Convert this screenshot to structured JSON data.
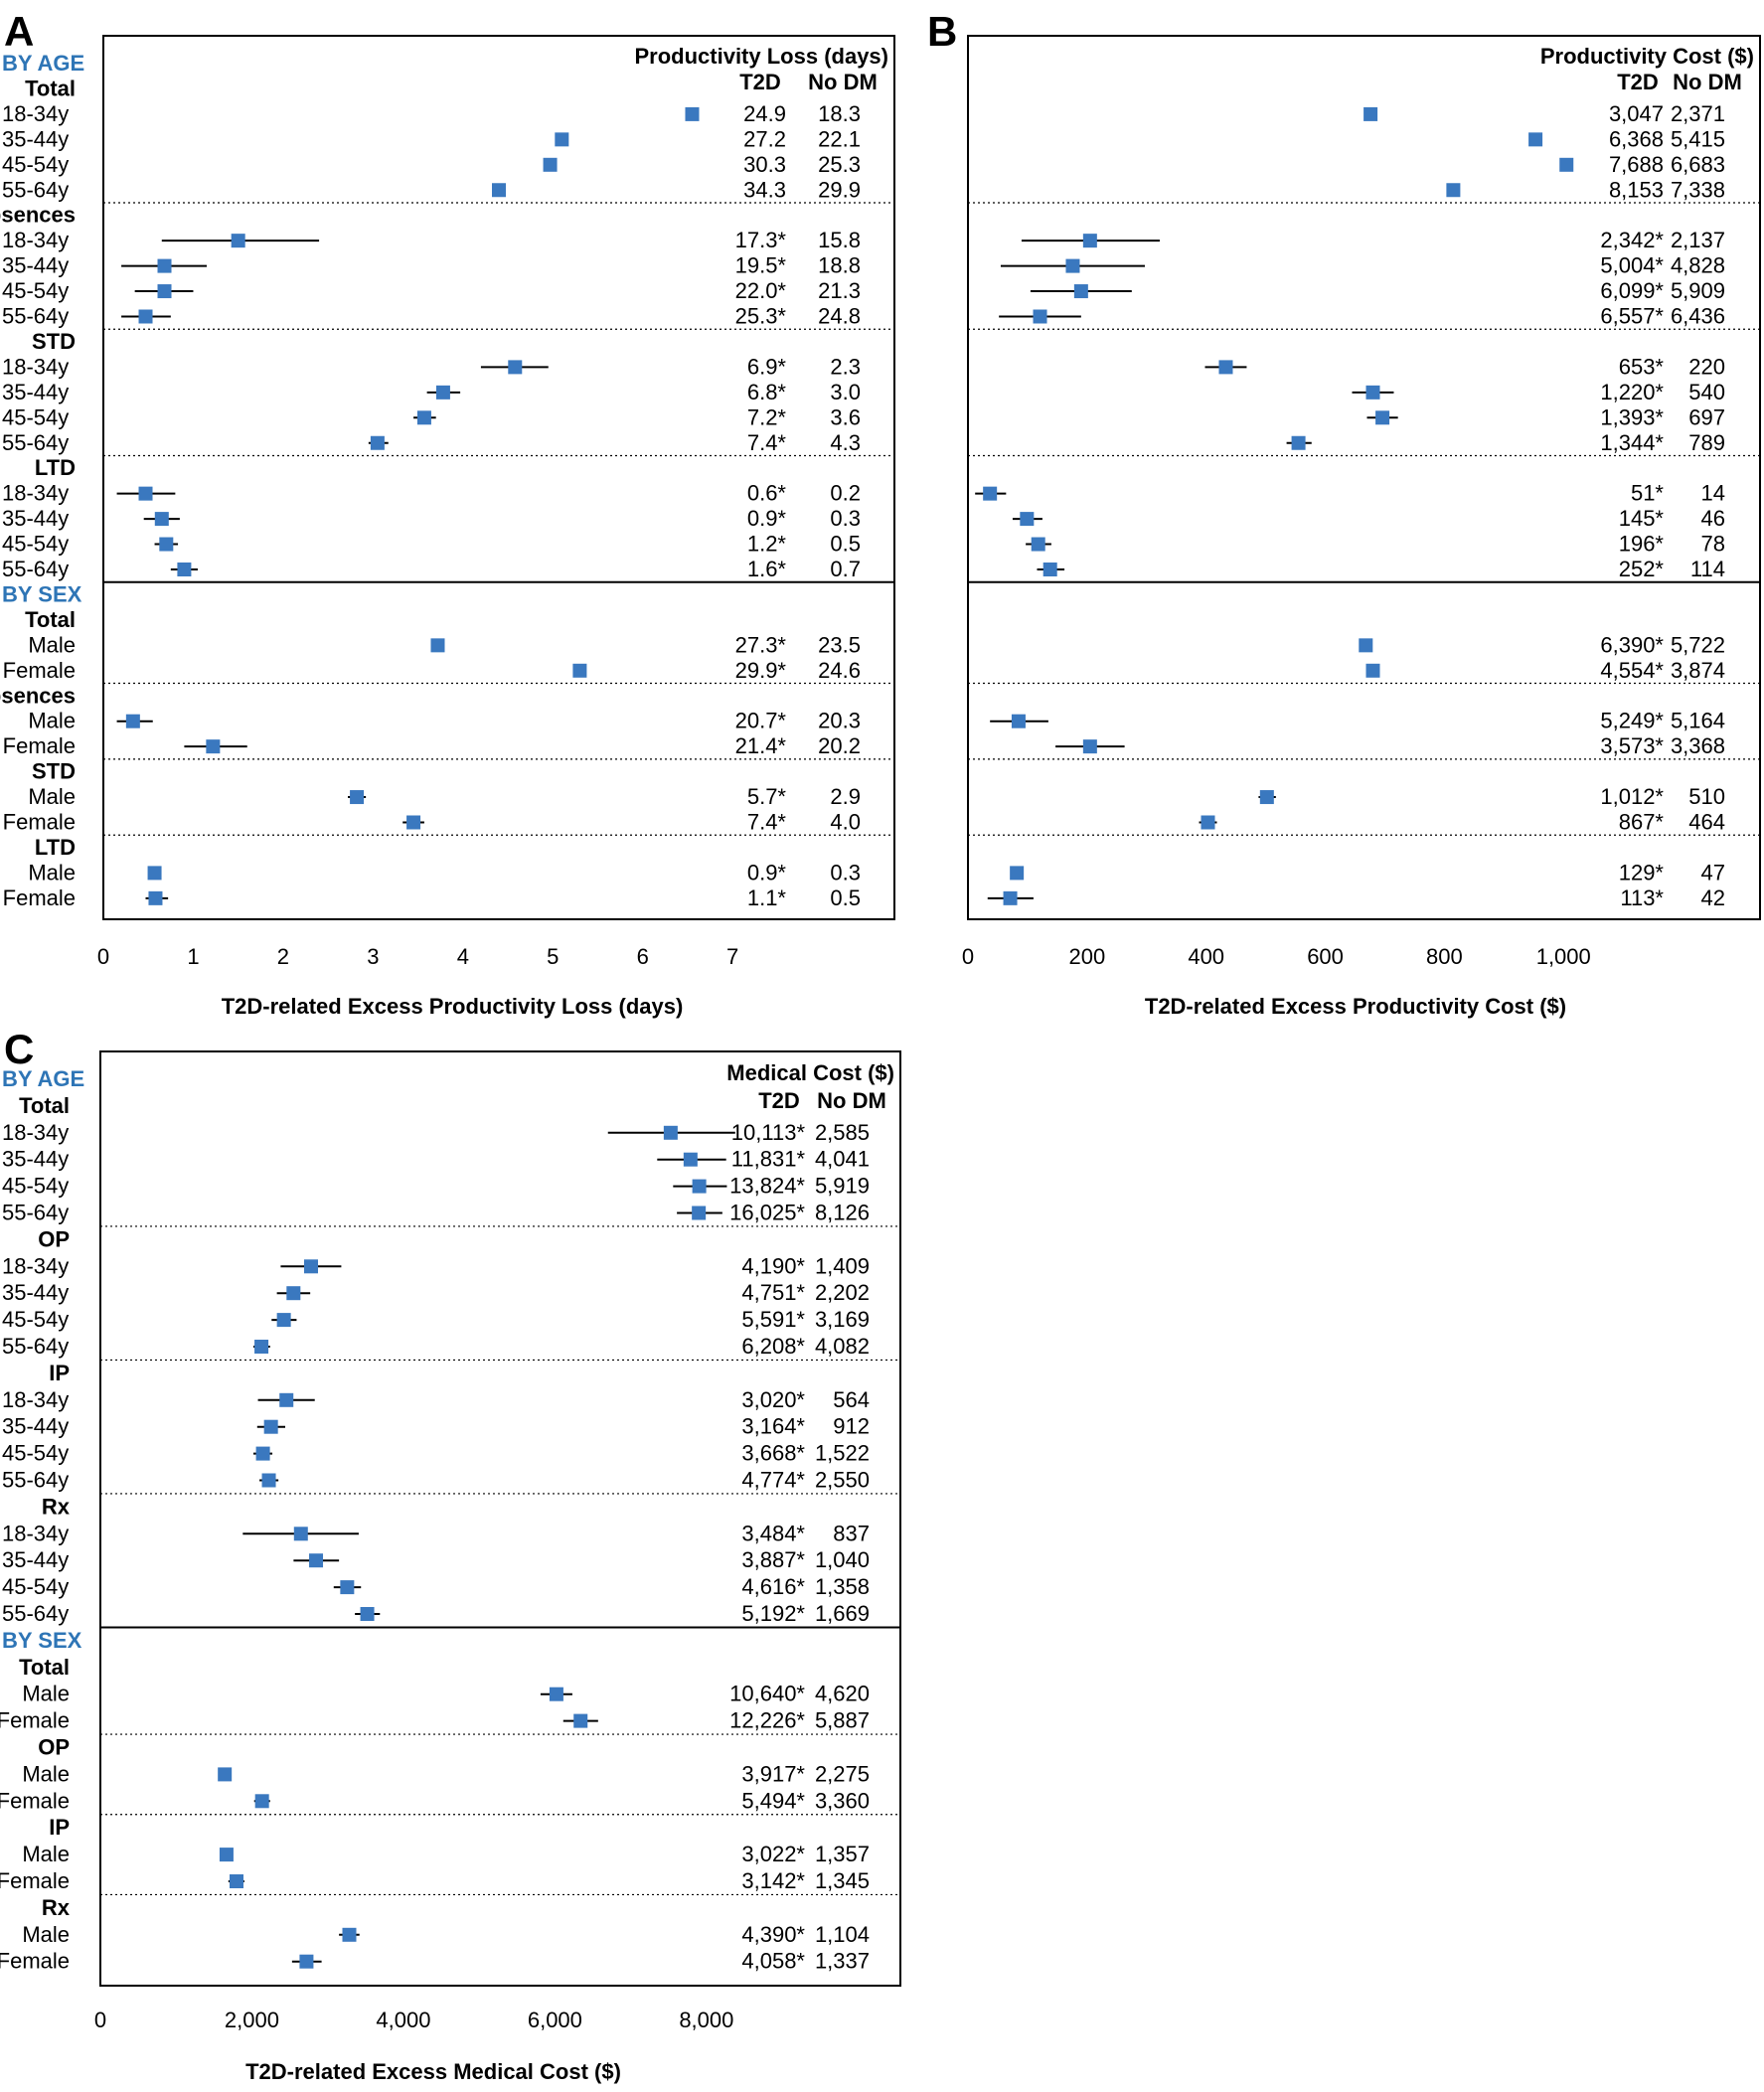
{
  "figure_colors": {
    "marker": "#3a78bf",
    "group_heading": "#2e75b6",
    "ink": "#000000"
  },
  "chart_data": [
    {
      "type": "forest",
      "panel_letter": "A",
      "title": "Productivity Loss (days)",
      "col_t2d": "T2D",
      "col_nodm": "No DM",
      "xlabel": "T2D-related Excess Productivity Loss (days)",
      "xlim": [
        0,
        8.8
      ],
      "xticks": [
        0,
        1,
        2,
        3,
        4,
        5,
        6,
        7
      ],
      "tick_labels": [
        "0",
        "1",
        "2",
        "3",
        "4",
        "5",
        "6",
        "7"
      ],
      "rows": [
        {
          "kind": "group",
          "text": "BY AGE"
        },
        {
          "kind": "sub",
          "text": "Total"
        },
        {
          "kind": "data",
          "label": "18-34y",
          "est": 6.55,
          "lo": null,
          "hi": null,
          "t2d": "24.9",
          "nodm": "18.3"
        },
        {
          "kind": "data",
          "label": "35-44y",
          "est": 5.1,
          "lo": null,
          "hi": null,
          "t2d": "27.2",
          "nodm": "22.1"
        },
        {
          "kind": "data",
          "label": "45-54y",
          "est": 4.97,
          "lo": null,
          "hi": null,
          "t2d": "30.3",
          "nodm": "25.3"
        },
        {
          "kind": "data",
          "label": "55-64y",
          "est": 4.4,
          "lo": null,
          "hi": null,
          "t2d": "34.3",
          "nodm": "29.9"
        },
        {
          "kind": "sub",
          "text": "Absences",
          "sep": "dot"
        },
        {
          "kind": "data",
          "label": "18-34y",
          "est": 1.5,
          "lo": 0.65,
          "hi": 2.4,
          "t2d": "17.3*",
          "nodm": "15.8"
        },
        {
          "kind": "data",
          "label": "35-44y",
          "est": 0.68,
          "lo": 0.2,
          "hi": 1.15,
          "t2d": "19.5*",
          "nodm": "18.8"
        },
        {
          "kind": "data",
          "label": "45-54y",
          "est": 0.68,
          "lo": 0.35,
          "hi": 1.0,
          "t2d": "22.0*",
          "nodm": "21.3"
        },
        {
          "kind": "data",
          "label": "55-64y",
          "est": 0.47,
          "lo": 0.2,
          "hi": 0.75,
          "t2d": "25.3*",
          "nodm": "24.8"
        },
        {
          "kind": "sub",
          "text": "STD",
          "sep": "dot"
        },
        {
          "kind": "data",
          "label": "18-34y",
          "est": 4.58,
          "lo": 4.2,
          "hi": 4.95,
          "t2d": "6.9*",
          "nodm": "2.3"
        },
        {
          "kind": "data",
          "label": "35-44y",
          "est": 3.78,
          "lo": 3.6,
          "hi": 3.97,
          "t2d": "6.8*",
          "nodm": "3.0"
        },
        {
          "kind": "data",
          "label": "45-54y",
          "est": 3.57,
          "lo": 3.45,
          "hi": 3.7,
          "t2d": "7.2*",
          "nodm": "3.6"
        },
        {
          "kind": "data",
          "label": "55-64y",
          "est": 3.05,
          "lo": 2.95,
          "hi": 3.17,
          "t2d": "7.4*",
          "nodm": "4.3"
        },
        {
          "kind": "sub",
          "text": "LTD",
          "sep": "dot"
        },
        {
          "kind": "data",
          "label": "18-34y",
          "est": 0.47,
          "lo": 0.15,
          "hi": 0.8,
          "t2d": "0.6*",
          "nodm": "0.2"
        },
        {
          "kind": "data",
          "label": "35-44y",
          "est": 0.65,
          "lo": 0.45,
          "hi": 0.85,
          "t2d": "0.9*",
          "nodm": "0.3"
        },
        {
          "kind": "data",
          "label": "45-54y",
          "est": 0.7,
          "lo": 0.57,
          "hi": 0.83,
          "t2d": "1.2*",
          "nodm": "0.5"
        },
        {
          "kind": "data",
          "label": "55-64y",
          "est": 0.9,
          "lo": 0.75,
          "hi": 1.05,
          "t2d": "1.6*",
          "nodm": "0.7"
        },
        {
          "kind": "group",
          "text": "BY SEX",
          "sep": "solid"
        },
        {
          "kind": "sub",
          "text": "Total"
        },
        {
          "kind": "data",
          "label": "Male",
          "est": 3.72,
          "lo": null,
          "hi": null,
          "t2d": "27.3*",
          "nodm": "23.5"
        },
        {
          "kind": "data",
          "label": "Female",
          "est": 5.3,
          "lo": null,
          "hi": null,
          "t2d": "29.9*",
          "nodm": "24.6"
        },
        {
          "kind": "sub",
          "text": "Absences",
          "sep": "dot"
        },
        {
          "kind": "data",
          "label": "Male",
          "est": 0.33,
          "lo": 0.15,
          "hi": 0.55,
          "t2d": "20.7*",
          "nodm": "20.3"
        },
        {
          "kind": "data",
          "label": "Female",
          "est": 1.22,
          "lo": 0.9,
          "hi": 1.6,
          "t2d": "21.4*",
          "nodm": "20.2"
        },
        {
          "kind": "sub",
          "text": "STD",
          "sep": "dot"
        },
        {
          "kind": "data",
          "label": "Male",
          "est": 2.82,
          "lo": 2.72,
          "hi": 2.92,
          "t2d": "5.7*",
          "nodm": "2.9"
        },
        {
          "kind": "data",
          "label": "Female",
          "est": 3.45,
          "lo": 3.33,
          "hi": 3.57,
          "t2d": "7.4*",
          "nodm": "4.0"
        },
        {
          "kind": "sub",
          "text": "LTD",
          "sep": "dot"
        },
        {
          "kind": "data",
          "label": "Male",
          "est": 0.57,
          "lo": null,
          "hi": null,
          "t2d": "0.9*",
          "nodm": "0.3"
        },
        {
          "kind": "data",
          "label": "Female",
          "est": 0.58,
          "lo": 0.47,
          "hi": 0.72,
          "t2d": "1.1*",
          "nodm": "0.5"
        }
      ]
    },
    {
      "type": "forest",
      "panel_letter": "B",
      "title": "Productivity Cost ($)",
      "col_t2d": "T2D",
      "col_nodm": "No DM",
      "xlabel": "T2D-related Excess Productivity Cost ($)",
      "xlim": [
        0,
        1330
      ],
      "xticks": [
        0,
        200,
        400,
        600,
        800,
        1000
      ],
      "tick_labels": [
        "0",
        "200",
        "400",
        "600",
        "800",
        "1,000"
      ],
      "rows": [
        {
          "kind": "group",
          "text": ""
        },
        {
          "kind": "sub",
          "text": ""
        },
        {
          "kind": "data",
          "label": "",
          "est": 676,
          "lo": null,
          "hi": null,
          "t2d": "3,047",
          "nodm": "2,371"
        },
        {
          "kind": "data",
          "label": "",
          "est": 953,
          "lo": null,
          "hi": null,
          "t2d": "6,368",
          "nodm": "5,415"
        },
        {
          "kind": "data",
          "label": "",
          "est": 1005,
          "lo": null,
          "hi": null,
          "t2d": "7,688",
          "nodm": "6,683"
        },
        {
          "kind": "data",
          "label": "",
          "est": 815,
          "lo": null,
          "hi": null,
          "t2d": "8,153",
          "nodm": "7,338"
        },
        {
          "kind": "sub",
          "text": "",
          "sep": "dot"
        },
        {
          "kind": "data",
          "label": "",
          "est": 205,
          "lo": 90,
          "hi": 322,
          "t2d": "2,342*",
          "nodm": "2,137"
        },
        {
          "kind": "data",
          "label": "",
          "est": 176,
          "lo": 55,
          "hi": 297,
          "t2d": "5,004*",
          "nodm": "4,828"
        },
        {
          "kind": "data",
          "label": "",
          "est": 190,
          "lo": 105,
          "hi": 275,
          "t2d": "6,099*",
          "nodm": "5,909"
        },
        {
          "kind": "data",
          "label": "",
          "est": 121,
          "lo": 52,
          "hi": 190,
          "t2d": "6,557*",
          "nodm": "6,436"
        },
        {
          "kind": "sub",
          "text": "",
          "sep": "dot"
        },
        {
          "kind": "data",
          "label": "",
          "est": 433,
          "lo": 398,
          "hi": 468,
          "t2d": "653*",
          "nodm": "220"
        },
        {
          "kind": "data",
          "label": "",
          "est": 680,
          "lo": 645,
          "hi": 715,
          "t2d": "1,220*",
          "nodm": "540"
        },
        {
          "kind": "data",
          "label": "",
          "est": 696,
          "lo": 670,
          "hi": 722,
          "t2d": "1,393*",
          "nodm": "697"
        },
        {
          "kind": "data",
          "label": "",
          "est": 555,
          "lo": 535,
          "hi": 577,
          "t2d": "1,344*",
          "nodm": "789"
        },
        {
          "kind": "sub",
          "text": "",
          "sep": "dot"
        },
        {
          "kind": "data",
          "label": "",
          "est": 37,
          "lo": 12,
          "hi": 64,
          "t2d": "51*",
          "nodm": "14"
        },
        {
          "kind": "data",
          "label": "",
          "est": 99,
          "lo": 75,
          "hi": 125,
          "t2d": "145*",
          "nodm": "46"
        },
        {
          "kind": "data",
          "label": "",
          "est": 118,
          "lo": 97,
          "hi": 140,
          "t2d": "196*",
          "nodm": "78"
        },
        {
          "kind": "data",
          "label": "",
          "est": 138,
          "lo": 116,
          "hi": 162,
          "t2d": "252*",
          "nodm": "114"
        },
        {
          "kind": "group",
          "text": "",
          "sep": "solid"
        },
        {
          "kind": "sub",
          "text": ""
        },
        {
          "kind": "data",
          "label": "",
          "est": 668,
          "lo": null,
          "hi": null,
          "t2d": "6,390*",
          "nodm": "5,722"
        },
        {
          "kind": "data",
          "label": "",
          "est": 680,
          "lo": null,
          "hi": null,
          "t2d": "4,554*",
          "nodm": "3,874"
        },
        {
          "kind": "sub",
          "text": "",
          "sep": "dot"
        },
        {
          "kind": "data",
          "label": "",
          "est": 85,
          "lo": 37,
          "hi": 135,
          "t2d": "5,249*",
          "nodm": "5,164"
        },
        {
          "kind": "data",
          "label": "",
          "est": 205,
          "lo": 147,
          "hi": 263,
          "t2d": "3,573*",
          "nodm": "3,368"
        },
        {
          "kind": "sub",
          "text": "",
          "sep": "dot"
        },
        {
          "kind": "data",
          "label": "",
          "est": 502,
          "lo": 488,
          "hi": 517,
          "t2d": "1,012*",
          "nodm": "510"
        },
        {
          "kind": "data",
          "label": "",
          "est": 403,
          "lo": 388,
          "hi": 418,
          "t2d": "867*",
          "nodm": "464"
        },
        {
          "kind": "sub",
          "text": "",
          "sep": "dot"
        },
        {
          "kind": "data",
          "label": "",
          "est": 82,
          "lo": null,
          "hi": null,
          "t2d": "129*",
          "nodm": "47"
        },
        {
          "kind": "data",
          "label": "",
          "est": 71,
          "lo": 33,
          "hi": 110,
          "t2d": "113*",
          "nodm": "42"
        }
      ]
    },
    {
      "type": "forest",
      "panel_letter": "C",
      "title": "Medical Cost ($)",
      "col_t2d": "T2D",
      "col_nodm": "No DM",
      "xlabel": "T2D-related Excess Medical Cost ($)",
      "xlim": [
        0,
        10560
      ],
      "xticks": [
        0,
        2000,
        4000,
        6000,
        8000
      ],
      "tick_labels": [
        "0",
        "2,000",
        "4,000",
        "6,000",
        "8,000"
      ],
      "rows": [
        {
          "kind": "group",
          "text": "BY AGE"
        },
        {
          "kind": "sub",
          "text": "Total"
        },
        {
          "kind": "data",
          "label": "18-34y",
          "est": 7528,
          "lo": 6700,
          "hi": 8380,
          "t2d": "10,113*",
          "nodm": "2,585"
        },
        {
          "kind": "data",
          "label": "35-44y",
          "est": 7790,
          "lo": 7350,
          "hi": 8260,
          "t2d": "11,831*",
          "nodm": "4,041"
        },
        {
          "kind": "data",
          "label": "45-54y",
          "est": 7905,
          "lo": 7560,
          "hi": 8270,
          "t2d": "13,824*",
          "nodm": "5,919"
        },
        {
          "kind": "data",
          "label": "55-64y",
          "est": 7899,
          "lo": 7610,
          "hi": 8210,
          "t2d": "16,025*",
          "nodm": "8,126"
        },
        {
          "kind": "sub",
          "text": "OP",
          "sep": "dot"
        },
        {
          "kind": "data",
          "label": "18-34y",
          "est": 2781,
          "lo": 2380,
          "hi": 3180,
          "t2d": "4,190*",
          "nodm": "1,409"
        },
        {
          "kind": "data",
          "label": "35-44y",
          "est": 2549,
          "lo": 2330,
          "hi": 2770,
          "t2d": "4,751*",
          "nodm": "2,202"
        },
        {
          "kind": "data",
          "label": "45-54y",
          "est": 2422,
          "lo": 2260,
          "hi": 2590,
          "t2d": "5,591*",
          "nodm": "3,169"
        },
        {
          "kind": "data",
          "label": "55-64y",
          "est": 2126,
          "lo": 2020,
          "hi": 2240,
          "t2d": "6,208*",
          "nodm": "4,082"
        },
        {
          "kind": "sub",
          "text": "IP",
          "sep": "dot"
        },
        {
          "kind": "data",
          "label": "18-34y",
          "est": 2456,
          "lo": 2080,
          "hi": 2830,
          "t2d": "3,020*",
          "nodm": "564"
        },
        {
          "kind": "data",
          "label": "35-44y",
          "est": 2252,
          "lo": 2070,
          "hi": 2440,
          "t2d": "3,164*",
          "nodm": "912"
        },
        {
          "kind": "data",
          "label": "45-54y",
          "est": 2146,
          "lo": 2020,
          "hi": 2270,
          "t2d": "3,668*",
          "nodm": "1,522"
        },
        {
          "kind": "data",
          "label": "55-64y",
          "est": 2224,
          "lo": 2100,
          "hi": 2350,
          "t2d": "4,774*",
          "nodm": "2,550"
        },
        {
          "kind": "sub",
          "text": "Rx",
          "sep": "dot"
        },
        {
          "kind": "data",
          "label": "18-34y",
          "est": 2647,
          "lo": 1880,
          "hi": 3410,
          "t2d": "3,484*",
          "nodm": "837"
        },
        {
          "kind": "data",
          "label": "35-44y",
          "est": 2847,
          "lo": 2550,
          "hi": 3150,
          "t2d": "3,887*",
          "nodm": "1,040"
        },
        {
          "kind": "data",
          "label": "45-54y",
          "est": 3258,
          "lo": 3080,
          "hi": 3440,
          "t2d": "4,616*",
          "nodm": "1,358"
        },
        {
          "kind": "data",
          "label": "55-64y",
          "est": 3523,
          "lo": 3360,
          "hi": 3690,
          "t2d": "5,192*",
          "nodm": "1,669"
        },
        {
          "kind": "group",
          "text": "BY SEX",
          "sep": "solid"
        },
        {
          "kind": "sub",
          "text": "Total"
        },
        {
          "kind": "data",
          "label": "Male",
          "est": 6020,
          "lo": 5810,
          "hi": 6230,
          "t2d": "10,640*",
          "nodm": "4,620"
        },
        {
          "kind": "data",
          "label": "Female",
          "est": 6339,
          "lo": 6110,
          "hi": 6570,
          "t2d": "12,226*",
          "nodm": "5,887"
        },
        {
          "kind": "sub",
          "text": "OP",
          "sep": "dot"
        },
        {
          "kind": "data",
          "label": "Male",
          "est": 1642,
          "lo": null,
          "hi": null,
          "t2d": "3,917*",
          "nodm": "2,275"
        },
        {
          "kind": "data",
          "label": "Female",
          "est": 2134,
          "lo": 2030,
          "hi": 2240,
          "t2d": "5,494*",
          "nodm": "3,360"
        },
        {
          "kind": "sub",
          "text": "IP",
          "sep": "dot"
        },
        {
          "kind": "data",
          "label": "Male",
          "est": 1665,
          "lo": null,
          "hi": null,
          "t2d": "3,022*",
          "nodm": "1,357"
        },
        {
          "kind": "data",
          "label": "Female",
          "est": 1797,
          "lo": 1690,
          "hi": 1900,
          "t2d": "3,142*",
          "nodm": "1,345"
        },
        {
          "kind": "sub",
          "text": "Rx",
          "sep": "dot"
        },
        {
          "kind": "data",
          "label": "Male",
          "est": 3286,
          "lo": 3150,
          "hi": 3420,
          "t2d": "4,390*",
          "nodm": "1,104"
        },
        {
          "kind": "data",
          "label": "Female",
          "est": 2721,
          "lo": 2530,
          "hi": 2920,
          "t2d": "4,058*",
          "nodm": "1,337"
        }
      ]
    }
  ]
}
